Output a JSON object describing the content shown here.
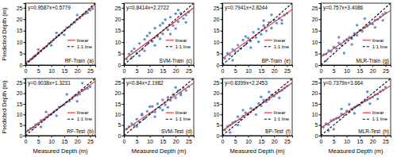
{
  "chart_data": [
    {
      "type": "scatter",
      "title": "RF-Train",
      "annotations": [
        "y=0.9587x+0.5779",
        "(a)"
      ],
      "y_label": "Predicted Depth (m)",
      "xlim": [
        0,
        27
      ],
      "ylim": [
        0,
        27
      ],
      "xticks": [
        0,
        5,
        10,
        15,
        20,
        25
      ],
      "yticks": [
        0,
        5,
        10,
        15,
        20,
        25
      ],
      "legend": "right",
      "series": [
        {
          "type": "scatter",
          "marker": "circle",
          "color": "#2f6fc0",
          "x": [
            1,
            2,
            3,
            3.5,
            4,
            5,
            6,
            7,
            8,
            9,
            10,
            11,
            12,
            13,
            14,
            15,
            16,
            17,
            18,
            19,
            20,
            21,
            22,
            23,
            24,
            25,
            26,
            5,
            10,
            15,
            20,
            12
          ],
          "values": [
            1.6,
            2.4,
            3.3,
            3.9,
            4.2,
            5.4,
            6.2,
            7.3,
            8.0,
            9.4,
            10.1,
            11.2,
            12.3,
            13.1,
            13.9,
            15.0,
            16.3,
            16.6,
            17.8,
            18.6,
            19.9,
            20.5,
            21.6,
            22.4,
            22.8,
            23.9,
            24.6,
            6.8,
            8.6,
            13.2,
            21.8,
            14.0
          ]
        },
        {
          "name": "linear",
          "type": "line",
          "color": "#e3262a",
          "x": [
            0,
            27
          ],
          "values": [
            0.5779,
            26.463
          ]
        },
        {
          "name": "1:1 line",
          "type": "line",
          "line_style": "dashed",
          "color": "#000000",
          "x": [
            0,
            27
          ],
          "values": [
            0,
            27
          ]
        }
      ]
    },
    {
      "type": "scatter",
      "title": "SVM-Train",
      "annotations": [
        "y=0.8414x+2.2722",
        "(c)"
      ],
      "xlim": [
        0,
        27
      ],
      "ylim": [
        0,
        27
      ],
      "xticks": [
        0,
        5,
        10,
        15,
        20,
        25
      ],
      "yticks": [
        0,
        5,
        10,
        15,
        20,
        25
      ],
      "legend": "right",
      "series": [
        {
          "type": "scatter",
          "marker": "circle",
          "color": "#2f6fc0",
          "x": [
            1,
            2,
            3,
            4,
            5,
            6,
            7,
            8,
            9,
            10,
            11,
            12,
            13,
            14,
            15,
            16,
            17,
            18,
            19,
            20,
            21,
            22,
            23,
            24,
            25,
            3,
            6,
            9,
            12,
            15,
            18,
            21,
            24,
            8,
            14,
            20
          ],
          "values": [
            2.5,
            4.8,
            3.2,
            7.1,
            5.3,
            9.4,
            6.8,
            11.2,
            9.1,
            14.0,
            10.3,
            16.1,
            12.5,
            17.3,
            13.6,
            19.8,
            15.4,
            20.9,
            17.2,
            22.4,
            18.9,
            22.6,
            20.3,
            21.8,
            23.1,
            6.0,
            4.1,
            12.7,
            8.6,
            18.3,
            13.5,
            24.0,
            18.6,
            6.2,
            11.4,
            15.9
          ]
        },
        {
          "name": "linear",
          "type": "line",
          "color": "#e3262a",
          "x": [
            0,
            27
          ],
          "values": [
            2.2722,
            24.99
          ]
        },
        {
          "name": "1:1 line",
          "type": "line",
          "line_style": "dashed",
          "color": "#000000",
          "x": [
            0,
            27
          ],
          "values": [
            0,
            27
          ]
        }
      ]
    },
    {
      "type": "scatter",
      "title": "BP-Train",
      "annotations": [
        "y=0.7941x+2.8244",
        "(e)"
      ],
      "xlim": [
        0,
        27
      ],
      "ylim": [
        0,
        27
      ],
      "xticks": [
        0,
        5,
        10,
        15,
        20,
        25
      ],
      "yticks": [
        0,
        5,
        10,
        15,
        20,
        25
      ],
      "legend": "right",
      "series": [
        {
          "type": "scatter",
          "marker": "circle",
          "color": "#2f6fc0",
          "x": [
            1,
            2,
            3,
            4,
            5,
            6,
            7,
            8,
            9,
            10,
            11,
            12,
            13,
            14,
            15,
            16,
            17,
            18,
            19,
            20,
            21,
            22,
            23,
            24,
            25,
            4,
            9,
            14,
            19,
            23,
            11,
            16
          ],
          "values": [
            2.9,
            5.1,
            4.3,
            6.8,
            5.9,
            8.7,
            7.2,
            10.9,
            9.0,
            11.8,
            10.5,
            14.3,
            12.0,
            15.7,
            13.4,
            17.2,
            14.9,
            18.5,
            16.1,
            19.6,
            18.3,
            20.4,
            19.6,
            21.8,
            22.6,
            2.1,
            12.5,
            10.1,
            21.9,
            18.2,
            7.6,
            19.4
          ]
        },
        {
          "name": "linear",
          "type": "line",
          "color": "#e3262a",
          "x": [
            0,
            27
          ],
          "values": [
            2.8244,
            24.265
          ]
        },
        {
          "name": "1:1 line",
          "type": "line",
          "line_style": "dashed",
          "color": "#000000",
          "x": [
            0,
            27
          ],
          "values": [
            0,
            27
          ]
        }
      ]
    },
    {
      "type": "scatter",
      "title": "MLR-Train",
      "annotations": [
        "y=0.757x+3.4086",
        "(g)"
      ],
      "xlim": [
        0,
        27
      ],
      "ylim": [
        0,
        27
      ],
      "xticks": [
        0,
        5,
        10,
        15,
        20,
        25
      ],
      "yticks": [
        0,
        5,
        10,
        15,
        20,
        25
      ],
      "legend": "right",
      "series": [
        {
          "type": "scatter",
          "marker": "circle",
          "color": "#2f6fc0",
          "x": [
            1,
            2,
            3,
            4,
            5,
            6,
            7,
            8,
            9,
            10,
            11,
            12,
            13,
            14,
            15,
            16,
            17,
            18,
            19,
            20,
            21,
            22,
            23,
            24,
            25,
            2,
            7,
            12,
            17,
            21,
            24,
            9,
            14
          ],
          "values": [
            4.5,
            4.8,
            6.3,
            5.9,
            7.9,
            7.2,
            9.6,
            8.8,
            10.4,
            11.2,
            12.1,
            11.5,
            13.8,
            13.0,
            15.1,
            14.7,
            16.4,
            17.0,
            18.1,
            17.9,
            19.6,
            19.9,
            21.0,
            22.1,
            22.8,
            1.8,
            12.1,
            9.0,
            20.3,
            16.4,
            19.5,
            5.2,
            17.4
          ]
        },
        {
          "name": "linear",
          "type": "line",
          "color": "#e3262a",
          "x": [
            0,
            27
          ],
          "values": [
            3.4086,
            23.848
          ]
        },
        {
          "name": "1:1 line",
          "type": "line",
          "line_style": "dashed",
          "color": "#000000",
          "x": [
            0,
            27
          ],
          "values": [
            0,
            27
          ]
        }
      ]
    },
    {
      "type": "scatter",
      "title": "RF-Test",
      "annotations": [
        "y=0.9038x+1.3231",
        "(b)"
      ],
      "x_label": "Measured Depth (m)",
      "y_label": "Predicted Depth (m)",
      "xlim": [
        0,
        27
      ],
      "ylim": [
        0,
        27
      ],
      "xticks": [
        0,
        5,
        10,
        15,
        20,
        25
      ],
      "yticks": [
        0,
        5,
        10,
        15,
        20,
        25
      ],
      "legend": "right",
      "series": [
        {
          "type": "scatter",
          "marker": "circle",
          "color": "#2f6fc0",
          "x": [
            1,
            2,
            3,
            4,
            5,
            6,
            7,
            8,
            9,
            10,
            11,
            12,
            13,
            14,
            15,
            16,
            17,
            18,
            19,
            20,
            21,
            22,
            23,
            24,
            25,
            8,
            12,
            16,
            20,
            6,
            22
          ],
          "values": [
            2.5,
            3.4,
            3.9,
            5.2,
            5.6,
            7.1,
            7.5,
            8.6,
            9.8,
            10.2,
            11.4,
            12.1,
            13.5,
            14.0,
            14.6,
            15.9,
            16.3,
            17.4,
            18.8,
            19.1,
            19.6,
            21.2,
            21.9,
            22.3,
            23.1,
            11.2,
            9.4,
            19.5,
            16.2,
            4.1,
            24.8
          ]
        },
        {
          "name": "linear",
          "type": "line",
          "color": "#e3262a",
          "x": [
            0,
            27
          ],
          "values": [
            1.3231,
            25.726
          ]
        },
        {
          "name": "1:1 line",
          "type": "line",
          "line_style": "dashed",
          "color": "#000000",
          "x": [
            0,
            27
          ],
          "values": [
            0,
            27
          ]
        }
      ]
    },
    {
      "type": "scatter",
      "title": "SVM-Test",
      "annotations": [
        "y=0.84x+2.1982",
        "(d)"
      ],
      "x_label": "Measured Depth (m)",
      "xlim": [
        0,
        27
      ],
      "ylim": [
        0,
        27
      ],
      "xticks": [
        0,
        5,
        10,
        15,
        20,
        25
      ],
      "yticks": [
        0,
        5,
        10,
        15,
        20,
        25
      ],
      "legend": "right",
      "series": [
        {
          "type": "scatter",
          "marker": "circle",
          "color": "#2f6fc0",
          "x": [
            1,
            2,
            3,
            4,
            5,
            6,
            7,
            8,
            9,
            10,
            11,
            12,
            13,
            14,
            15,
            16,
            17,
            18,
            19,
            20,
            21,
            22,
            23,
            24,
            25,
            5,
            10,
            15,
            20,
            7,
            12,
            17,
            22
          ],
          "values": [
            3.1,
            4.2,
            5.6,
            4.9,
            7.8,
            6.4,
            9.7,
            8.1,
            11.5,
            10.4,
            13.8,
            11.2,
            15.0,
            13.1,
            16.9,
            14.6,
            18.1,
            16.7,
            19.4,
            17.9,
            21.3,
            20.1,
            22.5,
            21.4,
            23.2,
            4.3,
            13.7,
            12.1,
            22.8,
            10.2,
            8.9,
            13.4,
            19.2
          ]
        },
        {
          "name": "linear",
          "type": "line",
          "color": "#e3262a",
          "x": [
            0,
            27
          ],
          "values": [
            2.1982,
            24.878
          ]
        },
        {
          "name": "1:1 line",
          "type": "line",
          "line_style": "dashed",
          "color": "#000000",
          "x": [
            0,
            27
          ],
          "values": [
            0,
            27
          ]
        }
      ]
    },
    {
      "type": "scatter",
      "title": "BP-Test",
      "annotations": [
        "y=0.8399x+2.2453",
        "(f)"
      ],
      "x_label": "Measured Depth (m)",
      "xlim": [
        0,
        27
      ],
      "ylim": [
        0,
        27
      ],
      "xticks": [
        0,
        5,
        10,
        15,
        20,
        25
      ],
      "yticks": [
        0,
        5,
        10,
        15,
        20,
        25
      ],
      "legend": "right",
      "series": [
        {
          "type": "scatter",
          "marker": "circle",
          "color": "#2f6fc0",
          "x": [
            1,
            2,
            3,
            4,
            5,
            6,
            7,
            8,
            9,
            10,
            11,
            12,
            13,
            14,
            15,
            16,
            17,
            18,
            19,
            20,
            21,
            22,
            23,
            24,
            25,
            3,
            8,
            13,
            18,
            22,
            6,
            15
          ],
          "values": [
            2.6,
            4.4,
            5.0,
            6.1,
            6.7,
            8.9,
            7.6,
            9.2,
            10.8,
            10.1,
            12.9,
            12.3,
            13.1,
            15.2,
            14.1,
            16.8,
            16.0,
            17.1,
            19.2,
            18.7,
            20.0,
            20.9,
            21.4,
            22.5,
            23.4,
            1.5,
            12.0,
            9.9,
            20.6,
            17.8,
            5.0,
            18.3
          ]
        },
        {
          "name": "linear",
          "type": "line",
          "color": "#e3262a",
          "x": [
            0,
            27
          ],
          "values": [
            2.2453,
            24.923
          ]
        },
        {
          "name": "1:1 line",
          "type": "line",
          "line_style": "dashed",
          "color": "#000000",
          "x": [
            0,
            27
          ],
          "values": [
            0,
            27
          ]
        }
      ]
    },
    {
      "type": "scatter",
      "title": "MLR-Test",
      "annotations": [
        "y=0.7379x+3.664",
        "(h)"
      ],
      "x_label": "Measured Depth (m)",
      "xlim": [
        0,
        27
      ],
      "ylim": [
        0,
        27
      ],
      "xticks": [
        0,
        5,
        10,
        15,
        20,
        25
      ],
      "yticks": [
        0,
        5,
        10,
        15,
        20,
        25
      ],
      "legend": "right",
      "series": [
        {
          "type": "scatter",
          "marker": "circle",
          "color": "#2f6fc0",
          "x": [
            1,
            2,
            3,
            4,
            5,
            6,
            7,
            8,
            9,
            10,
            11,
            12,
            13,
            14,
            15,
            16,
            17,
            18,
            19,
            20,
            21,
            22,
            23,
            24,
            25,
            3,
            8,
            13,
            18,
            22,
            5,
            11,
            19
          ],
          "values": [
            3.9,
            5.6,
            5.2,
            7.1,
            7.6,
            8.2,
            8.4,
            10.2,
            9.8,
            11.6,
            11.3,
            12.7,
            13.4,
            14.1,
            14.4,
            15.6,
            16.3,
            16.9,
            17.6,
            18.2,
            19.3,
            19.6,
            20.8,
            21.5,
            22.9,
            2.3,
            12.6,
            10.5,
            20.7,
            17.3,
            3.0,
            14.7,
            15.1
          ]
        },
        {
          "name": "linear",
          "type": "line",
          "color": "#e3262a",
          "x": [
            0,
            27
          ],
          "values": [
            3.664,
            23.587
          ]
        },
        {
          "name": "1:1 line",
          "type": "line",
          "line_style": "dashed",
          "color": "#000000",
          "x": [
            0,
            27
          ],
          "values": [
            0,
            27
          ]
        }
      ]
    }
  ]
}
